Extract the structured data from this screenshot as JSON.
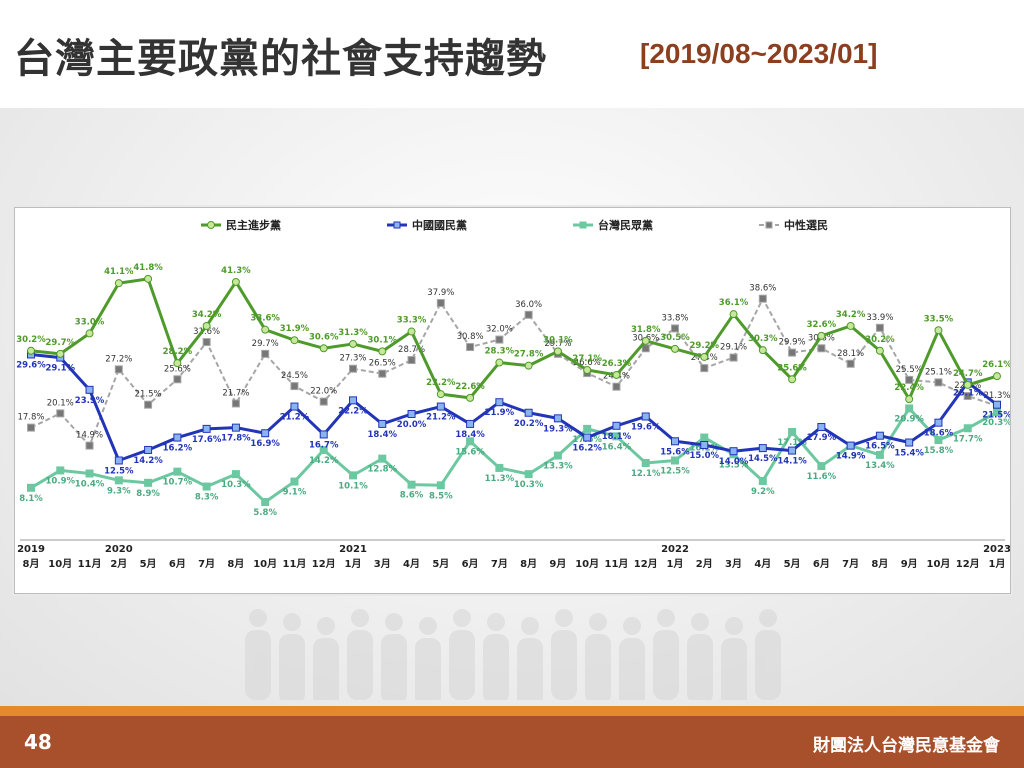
{
  "header": {
    "title": "台灣主要政黨的社會支持趨勢",
    "subtitle": "[2019/08~2023/01]"
  },
  "footer": {
    "page_number": "48",
    "organization": "財團法人台灣民意基金會"
  },
  "colors": {
    "dpp": "#4e9a2a",
    "kmt": "#2234b8",
    "tpp": "#6cc8a0",
    "neutral": "#8c8c8c",
    "footer": "#a8502b",
    "accent_strip": "#e58a2a"
  },
  "chart_data": {
    "type": "line",
    "title": "",
    "categories": [
      "8月",
      "10月",
      "11月",
      "2月",
      "5月",
      "6月",
      "7月",
      "8月",
      "10月",
      "11月",
      "12月",
      "1月",
      "3月",
      "4月",
      "5月",
      "6月",
      "7月",
      "8月",
      "9月",
      "10月",
      "11月",
      "12月",
      "1月",
      "2月",
      "3月",
      "4月",
      "5月",
      "6月",
      "7月",
      "8月",
      "9月",
      "10月",
      "12月",
      "1月"
    ],
    "year_labels": [
      {
        "year": "2019",
        "index": 0
      },
      {
        "year": "2020",
        "index": 3
      },
      {
        "year": "2021",
        "index": 11
      },
      {
        "year": "2022",
        "index": 22
      },
      {
        "year": "2023",
        "index": 33
      }
    ],
    "ylim": [
      0,
      50
    ],
    "legend_position": "top",
    "series": [
      {
        "name": "民主進步黨",
        "key": "dpp",
        "values": [
          30.2,
          29.7,
          33.0,
          41.1,
          41.8,
          28.2,
          34.2,
          41.3,
          33.6,
          31.9,
          30.6,
          31.3,
          30.1,
          33.3,
          23.2,
          22.6,
          28.3,
          27.8,
          30.1,
          27.1,
          26.3,
          31.8,
          30.5,
          29.2,
          36.1,
          30.3,
          25.6,
          32.6,
          34.2,
          30.2,
          22.4,
          33.5,
          24.7,
          26.1
        ]
      },
      {
        "name": "中國國民黨",
        "key": "kmt",
        "values": [
          29.6,
          29.1,
          23.9,
          12.5,
          14.2,
          16.2,
          17.6,
          17.8,
          16.9,
          21.2,
          16.7,
          22.2,
          18.4,
          20.0,
          21.2,
          18.4,
          21.9,
          20.2,
          19.3,
          16.2,
          18.1,
          19.6,
          15.6,
          15.0,
          14.0,
          14.5,
          14.1,
          17.9,
          14.9,
          16.5,
          15.4,
          18.6,
          25.1,
          21.5
        ]
      },
      {
        "name": "台灣民眾黨",
        "key": "tpp",
        "values": [
          8.1,
          10.9,
          10.4,
          9.3,
          8.9,
          10.7,
          8.3,
          10.3,
          5.8,
          9.1,
          14.2,
          10.1,
          12.8,
          8.6,
          8.5,
          15.6,
          11.3,
          10.3,
          13.3,
          17.6,
          16.4,
          12.1,
          12.5,
          16.2,
          13.5,
          9.2,
          17.1,
          11.6,
          14.9,
          13.4,
          20.9,
          15.8,
          17.7,
          20.3
        ]
      },
      {
        "name": "中性選民",
        "key": "neutral",
        "values": [
          17.8,
          20.1,
          14.9,
          27.2,
          21.5,
          25.6,
          31.6,
          21.7,
          29.7,
          24.5,
          22.0,
          27.3,
          26.5,
          28.7,
          37.9,
          30.8,
          32.0,
          36.0,
          29.7,
          26.6,
          24.4,
          30.6,
          33.8,
          27.4,
          29.1,
          38.6,
          29.9,
          30.6,
          28.1,
          33.9,
          25.5,
          25.1,
          22.9,
          21.3
        ]
      }
    ]
  }
}
